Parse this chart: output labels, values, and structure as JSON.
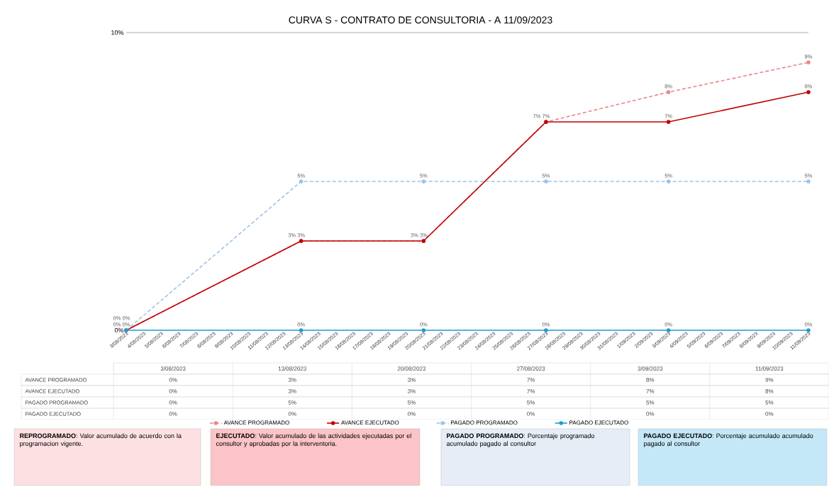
{
  "chart_data": {
    "type": "line",
    "title": "CURVA S -  CONTRATO DE CONSULTORIA - A  11/09/2023",
    "xlim": [
      "2023-08-03",
      "2023-09-11"
    ],
    "xticks": [
      {
        "value": "2023-08-03",
        "label": "3/08/2023"
      },
      {
        "value": "2023-08-04",
        "label": "4/08/2023"
      },
      {
        "value": "2023-08-05",
        "label": "5/08/2023"
      },
      {
        "value": "2023-08-06",
        "label": "6/08/2023"
      },
      {
        "value": "2023-08-07",
        "label": "7/08/2023"
      },
      {
        "value": "2023-08-08",
        "label": "8/08/2023"
      },
      {
        "value": "2023-08-09",
        "label": "9/08/2023"
      },
      {
        "value": "2023-08-10",
        "label": "10/08/2023"
      },
      {
        "value": "2023-08-11",
        "label": "11/08/2023"
      },
      {
        "value": "2023-08-12",
        "label": "12/08/2023"
      },
      {
        "value": "2023-08-13",
        "label": "13/08/2023"
      },
      {
        "value": "2023-08-14",
        "label": "14/08/2023"
      },
      {
        "value": "2023-08-15",
        "label": "15/08/2023"
      },
      {
        "value": "2023-08-16",
        "label": "16/08/2023"
      },
      {
        "value": "2023-08-17",
        "label": "17/08/2023"
      },
      {
        "value": "2023-08-18",
        "label": "18/08/2023"
      },
      {
        "value": "2023-08-19",
        "label": "19/08/2023"
      },
      {
        "value": "2023-08-20",
        "label": "20/08/2023"
      },
      {
        "value": "2023-08-21",
        "label": "21/08/2023"
      },
      {
        "value": "2023-08-22",
        "label": "22/08/2023"
      },
      {
        "value": "2023-08-23",
        "label": "23/08/2023"
      },
      {
        "value": "2023-08-24",
        "label": "24/08/2023"
      },
      {
        "value": "2023-08-25",
        "label": "25/08/2023"
      },
      {
        "value": "2023-08-26",
        "label": "26/08/2023"
      },
      {
        "value": "2023-08-27",
        "label": "27/08/2023"
      },
      {
        "value": "2023-08-28",
        "label": "28/08/2023"
      },
      {
        "value": "2023-08-29",
        "label": "29/08/2023"
      },
      {
        "value": "2023-08-30",
        "label": "30/08/2023"
      },
      {
        "value": "2023-08-31",
        "label": "31/08/2023"
      },
      {
        "value": "2023-09-01",
        "label": "1/09/2023"
      },
      {
        "value": "2023-09-02",
        "label": "2/09/2023"
      },
      {
        "value": "2023-09-03",
        "label": "3/09/2023"
      },
      {
        "value": "2023-09-04",
        "label": "4/09/2023"
      },
      {
        "value": "2023-09-05",
        "label": "5/09/2023"
      },
      {
        "value": "2023-09-06",
        "label": "6/09/2023"
      },
      {
        "value": "2023-09-07",
        "label": "7/09/2023"
      },
      {
        "value": "2023-09-08",
        "label": "8/09/2023"
      },
      {
        "value": "2023-09-09",
        "label": "9/09/2023"
      },
      {
        "value": "2023-09-10",
        "label": "10/09/2023"
      },
      {
        "value": "2023-09-11",
        "label": "11/09/2023"
      }
    ],
    "ylim": [
      0,
      10
    ],
    "yticks": [
      {
        "value": 0,
        "label": "0%"
      },
      {
        "value": 10,
        "label": "10%"
      }
    ],
    "legend": "bottom",
    "marker": "circle",
    "x": [
      "2023-08-03",
      "2023-08-13",
      "2023-08-20",
      "2023-08-27",
      "2023-09-03",
      "2023-09-11"
    ],
    "series": [
      {
        "name": "AVANCE PROGRAMADO",
        "color": "#e8888e",
        "line_style": "dashed",
        "values": [
          0,
          3,
          3,
          7,
          8,
          9
        ],
        "value_labels": [
          "0%",
          "3%",
          "3%",
          "7%",
          "8%",
          "9%"
        ]
      },
      {
        "name": "AVANCE EJECUTADO",
        "color": "#c00000",
        "line_style": "solid",
        "values": [
          0,
          3,
          3,
          7,
          7,
          8
        ],
        "value_labels": [
          "0%",
          "3%",
          "3%",
          "7%",
          "7%",
          "8%"
        ]
      },
      {
        "name": "PAGADO PROGRAMADO",
        "color": "#9dc3e6",
        "line_style": "dashed",
        "values": [
          0,
          5,
          5,
          5,
          5,
          5
        ],
        "value_labels": [
          "0%",
          "5%",
          "5%",
          "5%",
          "5%",
          "5%"
        ]
      },
      {
        "name": "PAGADO EJECUTADO",
        "color": "#1f9bd1",
        "line_style": "solid",
        "values": [
          0,
          0,
          0,
          0,
          0,
          0
        ],
        "value_labels": [
          "0%",
          "0%",
          "0%",
          "0%",
          "0%",
          "0%"
        ]
      }
    ],
    "annotations": [
      "**REPROGRAMADO**: Valor acumulado de acuerdo  con la programacion vigente.",
      "**EJECUTADO**: Valor acumulado de las actividades ejecutadas por el consultor y aprobadas por la interventoria.",
      "**PAGADO PROGRAMADO**: Porcentaje programado acumulado pagado al consultor",
      "**PAGADO EJECUTADO**: Porcentaje acumulado acumulado pagado al consultor"
    ]
  }
}
